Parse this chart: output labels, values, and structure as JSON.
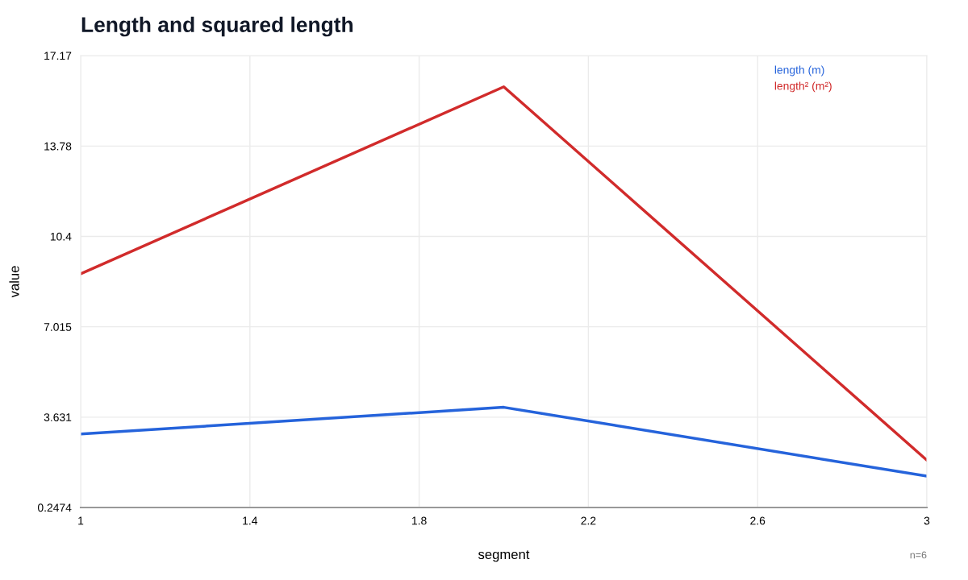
{
  "chart_data": {
    "type": "line",
    "title": "Length and squared length",
    "xlabel": "segment",
    "ylabel": "value",
    "x": [
      1,
      2,
      3
    ],
    "series": [
      {
        "name": "length (m)",
        "color": "#2563db",
        "values": [
          3,
          4,
          1.42
        ]
      },
      {
        "name": "length² (m²)",
        "color": "#d12b2b",
        "values": [
          9,
          16,
          2.02
        ]
      }
    ],
    "xlim": [
      1,
      3
    ],
    "xticks": [
      1,
      1.4,
      1.8,
      2.2,
      2.6,
      3
    ],
    "ylim": [
      0.2474,
      17.17
    ],
    "yticks": [
      0.2474,
      3.631,
      7.015,
      10.4,
      13.78,
      17.17
    ],
    "grid": true,
    "legend": "top right",
    "marker": "none",
    "line_style": "solid",
    "annotations": [
      "n=6"
    ]
  }
}
